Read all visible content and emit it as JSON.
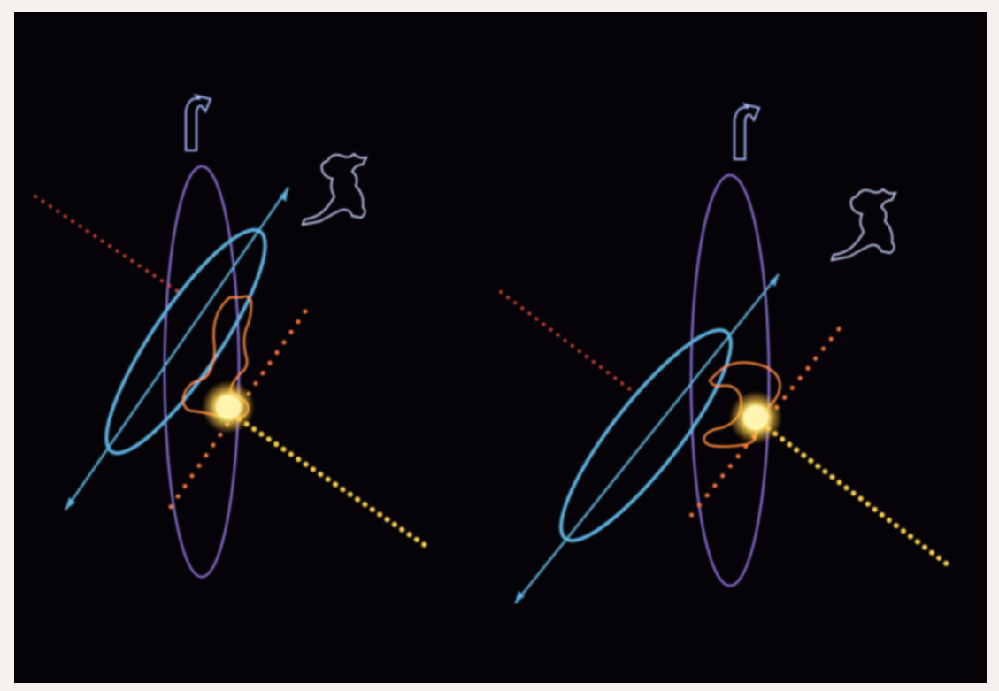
{
  "figure": {
    "panels": [
      {
        "id": "left",
        "description_icons": [
          "rotation-arrow-icon",
          "aquarius-figure-icon",
          "sagittarius-figure-icon",
          "sun-icon"
        ]
      },
      {
        "id": "right",
        "description_icons": [
          "rotation-arrow-icon",
          "aquarius-figure-icon",
          "sagittarius-figure-icon",
          "sun-icon"
        ]
      }
    ],
    "colors": {
      "background": "#050308",
      "frame": "#f4f1ee",
      "orbit": "#5fb4e0",
      "ecliptic": "#8c72d8",
      "sun_line": "#ffd24a",
      "perpendicular_dots": "#ff7a3a",
      "far_dots": "#d2442e",
      "figure_white": "#cfd6ff",
      "figure_orange": "#ff8a3a"
    }
  }
}
